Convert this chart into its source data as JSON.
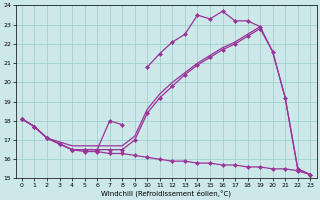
{
  "bg_color": "#cce8e8",
  "grid_color": "#99cccc",
  "line_color": "#993399",
  "xlim": [
    -0.5,
    23.5
  ],
  "ylim": [
    15,
    24
  ],
  "xticks": [
    0,
    1,
    2,
    3,
    4,
    5,
    6,
    7,
    8,
    9,
    10,
    11,
    12,
    13,
    14,
    15,
    16,
    17,
    18,
    19,
    20,
    21,
    22,
    23
  ],
  "yticks": [
    15,
    16,
    17,
    18,
    19,
    20,
    21,
    22,
    23,
    24
  ],
  "xlabel": "Windchill (Refroidissement éolien,°C)",
  "line_upper_a": {
    "x": [
      0,
      1,
      2,
      3,
      4,
      5,
      6,
      7,
      8
    ],
    "y": [
      18.1,
      17.7,
      17.1,
      16.8,
      16.5,
      16.5,
      16.5,
      18.0,
      17.8
    ]
  },
  "line_upper_b": {
    "x": [
      10,
      11,
      12,
      13,
      14,
      15,
      16,
      17,
      18,
      19
    ],
    "y": [
      20.8,
      21.5,
      22.1,
      22.5,
      23.5,
      23.3,
      23.7,
      23.2,
      23.2,
      22.9
    ]
  },
  "line_mid": {
    "x": [
      0,
      1,
      2,
      3,
      4,
      5,
      6,
      7,
      8,
      9,
      10,
      11,
      12,
      13,
      14,
      15,
      16,
      17,
      18,
      19,
      20,
      21,
      22,
      23
    ],
    "y": [
      18.1,
      17.7,
      17.1,
      16.8,
      16.5,
      16.5,
      16.5,
      16.5,
      16.5,
      17.0,
      18.4,
      19.2,
      19.8,
      20.4,
      20.9,
      21.3,
      21.7,
      22.0,
      22.4,
      22.8,
      21.6,
      19.2,
      15.5,
      15.2
    ]
  },
  "line_low": {
    "x": [
      0,
      1,
      2,
      3,
      4,
      5,
      6,
      7,
      8,
      9,
      10,
      11,
      12,
      13,
      14,
      15,
      16,
      17,
      18,
      19,
      20,
      21,
      22,
      23
    ],
    "y": [
      18.1,
      17.7,
      17.1,
      16.8,
      16.5,
      16.4,
      16.4,
      16.3,
      16.3,
      16.2,
      16.1,
      16.0,
      15.9,
      15.9,
      15.8,
      15.8,
      15.7,
      15.7,
      15.6,
      15.6,
      15.5,
      15.5,
      15.4,
      15.2
    ]
  },
  "line_diag": {
    "x": [
      0,
      1,
      2,
      3,
      4,
      5,
      6,
      7,
      8,
      9,
      10,
      11,
      12,
      13,
      14,
      15,
      16,
      17,
      18,
      19,
      20,
      21,
      22,
      23
    ],
    "y": [
      18.1,
      17.7,
      17.1,
      16.9,
      16.7,
      16.7,
      16.7,
      16.7,
      16.7,
      17.2,
      18.6,
      19.4,
      20.0,
      20.5,
      21.0,
      21.4,
      21.8,
      22.1,
      22.5,
      22.9,
      21.6,
      19.2,
      15.5,
      15.2
    ]
  }
}
